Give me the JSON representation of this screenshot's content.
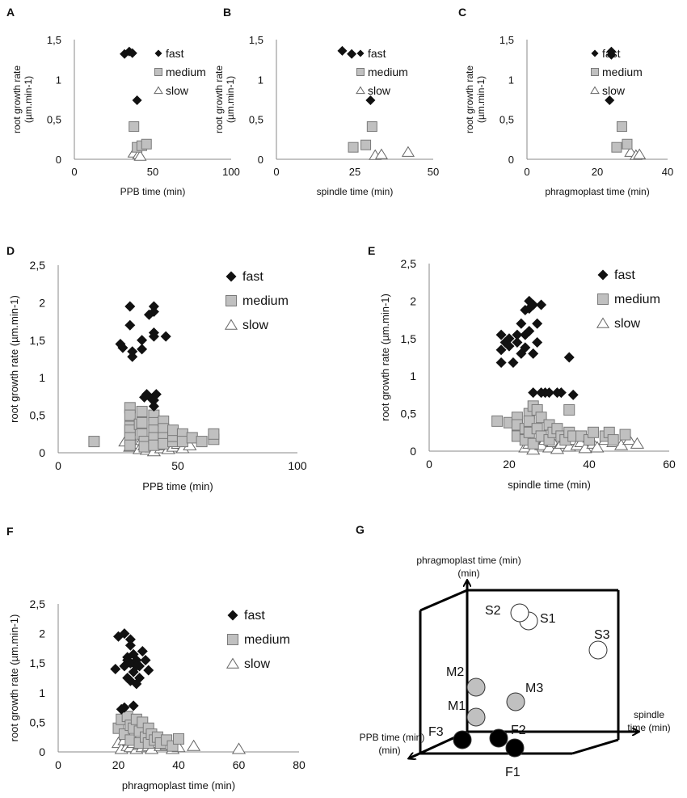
{
  "chart_data": [
    {
      "panel": "A",
      "type": "scatter",
      "xlabel": "PPB time (min)",
      "ylabel": "root growth  rate",
      "yunit": "(µm.min-1)",
      "xlim": [
        0,
        100
      ],
      "xticks": [
        0,
        50,
        100
      ],
      "ylim": [
        0,
        1.5
      ],
      "yticks": [
        "0",
        "0,5",
        "1",
        "1,5"
      ],
      "legend_position": "top-right",
      "series": [
        {
          "name": "fast",
          "marker": "diamond",
          "color": "#111111",
          "x": [
            32,
            35,
            37,
            40
          ],
          "y": [
            1.32,
            1.35,
            1.33,
            0.74
          ]
        },
        {
          "name": "medium",
          "marker": "square",
          "color": "#c0c0c0",
          "x": [
            38,
            40,
            43,
            46
          ],
          "y": [
            0.41,
            0.15,
            0.17,
            0.19
          ]
        },
        {
          "name": "slow",
          "marker": "triangle",
          "color": "#ffffff",
          "x": [
            38,
            41,
            42
          ],
          "y": [
            0.08,
            0.06,
            0.04
          ]
        }
      ]
    },
    {
      "panel": "B",
      "type": "scatter",
      "xlabel": "spindle time (min)",
      "ylabel": "root growth  rate",
      "yunit": "(µm.min-1)",
      "xlim": [
        0,
        50
      ],
      "xticks": [
        0,
        25,
        50
      ],
      "ylim": [
        0,
        1.5
      ],
      "yticks": [
        "0",
        "0,5",
        "1",
        "1,5"
      ],
      "legend_position": "top-right",
      "series": [
        {
          "name": "fast",
          "marker": "diamond",
          "color": "#111111",
          "x": [
            21,
            24,
            30
          ],
          "y": [
            1.36,
            1.32,
            0.74
          ]
        },
        {
          "name": "medium",
          "marker": "square",
          "color": "#c0c0c0",
          "x": [
            24.5,
            28.5,
            30.5
          ],
          "y": [
            0.15,
            0.18,
            0.41
          ]
        },
        {
          "name": "slow",
          "marker": "triangle",
          "color": "#ffffff",
          "x": [
            31.5,
            33.5,
            42
          ],
          "y": [
            0.05,
            0.06,
            0.09
          ]
        }
      ]
    },
    {
      "panel": "C",
      "type": "scatter",
      "xlabel": "phragmoplast time (min)",
      "ylabel": "root growth  rate",
      "yunit": "(µm.min-1)",
      "xlim": [
        0,
        40
      ],
      "xticks": [
        0,
        20,
        40
      ],
      "ylim": [
        0,
        1.5
      ],
      "yticks": [
        "0",
        "0,5",
        "1",
        "1,5"
      ],
      "legend_position": "top-right",
      "series": [
        {
          "name": "fast",
          "marker": "diamond",
          "color": "#111111",
          "x": [
            24,
            24,
            23.5
          ],
          "y": [
            1.35,
            1.31,
            0.74
          ]
        },
        {
          "name": "medium",
          "marker": "square",
          "color": "#c0c0c0",
          "x": [
            25.5,
            27,
            28.5
          ],
          "y": [
            0.15,
            0.41,
            0.19
          ]
        },
        {
          "name": "slow",
          "marker": "triangle",
          "color": "#ffffff",
          "x": [
            29.5,
            31,
            32
          ],
          "y": [
            0.09,
            0.05,
            0.06
          ]
        }
      ]
    },
    {
      "panel": "D",
      "type": "scatter",
      "xlabel": "PPB time (min)",
      "ylabel": "root growth rate",
      "yunit": "(µm.min-1)",
      "xlim": [
        0,
        100
      ],
      "xticks": [
        0,
        50,
        100
      ],
      "ylim": [
        0,
        2.5
      ],
      "yticks": [
        "0",
        "0,5",
        "1",
        "1,5",
        "2",
        "2,5"
      ],
      "legend_position": "top-right",
      "series": [
        {
          "name": "fast",
          "marker": "diamond",
          "color": "#111111",
          "x": [
            26,
            27,
            30,
            30,
            31,
            31,
            35,
            35,
            37,
            38,
            40,
            40,
            40,
            40,
            39,
            45,
            41,
            36,
            40,
            40
          ],
          "y": [
            1.45,
            1.4,
            1.95,
            1.7,
            1.35,
            1.28,
            1.5,
            1.38,
            0.78,
            1.84,
            1.95,
            1.88,
            1.6,
            1.55,
            0.72,
            1.55,
            0.78,
            0.74,
            0.7,
            0.62
          ]
        },
        {
          "name": "medium",
          "marker": "square",
          "color": "#c0c0c0",
          "x": [
            15,
            30,
            30,
            30,
            30,
            30,
            30,
            34,
            35,
            35,
            35,
            36,
            36,
            40,
            40,
            40,
            40,
            40,
            44,
            44,
            44,
            44,
            48,
            48,
            48,
            52,
            52,
            56,
            60,
            65,
            65
          ],
          "y": [
            0.15,
            0.6,
            0.5,
            0.35,
            0.3,
            0.2,
            0.1,
            0.38,
            0.55,
            0.4,
            0.25,
            0.15,
            0.08,
            0.5,
            0.4,
            0.3,
            0.2,
            0.1,
            0.42,
            0.32,
            0.2,
            0.12,
            0.15,
            0.22,
            0.3,
            0.25,
            0.15,
            0.2,
            0.15,
            0.18,
            0.25
          ]
        },
        {
          "name": "slow",
          "marker": "triangle",
          "color": "#ffffff",
          "x": [
            28,
            30,
            32,
            34,
            35,
            36,
            37,
            38,
            39,
            40,
            41,
            42,
            43,
            44,
            45,
            46,
            48,
            50,
            52,
            55
          ],
          "y": [
            0.15,
            0.08,
            0.12,
            0.05,
            0.17,
            0.1,
            0.04,
            0.14,
            0.07,
            0.02,
            0.12,
            0.18,
            0.06,
            0.1,
            0.15,
            0.05,
            0.08,
            0.12,
            0.06,
            0.1
          ]
        }
      ]
    },
    {
      "panel": "E",
      "type": "scatter",
      "xlabel": "spindle time (min)",
      "ylabel": "root growth rate",
      "yunit": "(µm.min-1)",
      "xlim": [
        0,
        60
      ],
      "xticks": [
        0,
        20,
        40,
        60
      ],
      "ylim": [
        0,
        2.5
      ],
      "yticks": [
        "0",
        "0,5",
        "1",
        "1,5",
        "2",
        "2,5"
      ],
      "legend_position": "top-right",
      "series": [
        {
          "name": "fast",
          "marker": "diamond",
          "color": "#111111",
          "x": [
            18,
            18,
            18,
            19,
            20,
            20,
            21,
            22,
            22,
            23,
            23,
            24,
            24,
            25,
            25,
            25,
            26,
            26,
            27,
            27,
            28,
            29,
            30,
            32,
            33,
            35,
            36,
            28,
            26,
            24
          ],
          "y": [
            1.55,
            1.35,
            1.18,
            1.45,
            1.5,
            1.4,
            1.18,
            1.55,
            1.45,
            1.7,
            1.3,
            1.55,
            1.38,
            2.0,
            1.9,
            1.6,
            1.3,
            1.95,
            1.45,
            1.7,
            0.78,
            0.78,
            0.78,
            0.78,
            0.78,
            1.25,
            0.75,
            1.95,
            0.78,
            1.88
          ]
        },
        {
          "name": "medium",
          "marker": "square",
          "color": "#c0c0c0",
          "x": [
            17,
            20,
            22,
            22,
            22,
            24,
            24,
            25,
            25,
            25,
            26,
            26,
            27,
            27,
            28,
            28,
            30,
            30,
            31,
            32,
            33,
            34,
            35,
            35,
            36,
            38,
            40,
            41,
            44,
            45,
            46,
            49
          ],
          "y": [
            0.4,
            0.38,
            0.45,
            0.35,
            0.2,
            0.3,
            0.15,
            0.5,
            0.4,
            0.25,
            0.6,
            0.1,
            0.55,
            0.3,
            0.45,
            0.2,
            0.35,
            0.15,
            0.25,
            0.3,
            0.2,
            0.15,
            0.55,
            0.25,
            0.2,
            0.2,
            0.15,
            0.25,
            0.2,
            0.25,
            0.15,
            0.22
          ]
        },
        {
          "name": "slow",
          "marker": "triangle",
          "color": "#ffffff",
          "x": [
            24,
            25,
            26,
            28,
            29,
            30,
            31,
            32,
            33,
            34,
            35,
            36,
            37,
            38,
            39,
            40,
            41,
            42,
            44,
            46,
            48,
            50,
            52
          ],
          "y": [
            0.05,
            0.1,
            0.02,
            0.08,
            0.15,
            0.05,
            0.12,
            0.03,
            0.1,
            0.18,
            0.06,
            0.15,
            0.08,
            0.12,
            0.04,
            0.18,
            0.1,
            0.05,
            0.15,
            0.12,
            0.08,
            0.15,
            0.1
          ]
        }
      ]
    },
    {
      "panel": "F",
      "type": "scatter",
      "xlabel": "phragmoplast time (min)",
      "ylabel": "root growth rate",
      "yunit": "(µm.min-1)",
      "xlim": [
        0,
        80
      ],
      "xticks": [
        0,
        20,
        40,
        60,
        80
      ],
      "ylim": [
        0,
        2.5
      ],
      "yticks": [
        "0",
        "0,5",
        "1",
        "1,5",
        "2",
        "2,5"
      ],
      "legend_position": "top-right",
      "series": [
        {
          "name": "fast",
          "marker": "diamond",
          "color": "#111111",
          "x": [
            19,
            20,
            21,
            22,
            22,
            23,
            23,
            24,
            24,
            24,
            25,
            25,
            26,
            26,
            27,
            27,
            28,
            29,
            30,
            22,
            23,
            25,
            24,
            26
          ],
          "y": [
            1.4,
            1.95,
            0.72,
            2.0,
            1.45,
            1.55,
            1.25,
            1.8,
            1.5,
            1.2,
            1.65,
            1.35,
            1.55,
            1.15,
            1.45,
            1.25,
            1.7,
            1.55,
            1.38,
            0.75,
            1.6,
            0.78,
            1.9,
            1.45
          ]
        },
        {
          "name": "medium",
          "marker": "square",
          "color": "#c0c0c0",
          "x": [
            20,
            21,
            22,
            23,
            24,
            24,
            25,
            26,
            27,
            27,
            28,
            29,
            30,
            30,
            31,
            32,
            33,
            34,
            36,
            38,
            40
          ],
          "y": [
            0.4,
            0.55,
            0.3,
            0.6,
            0.45,
            0.2,
            0.4,
            0.55,
            0.35,
            0.15,
            0.5,
            0.25,
            0.4,
            0.15,
            0.3,
            0.2,
            0.25,
            0.15,
            0.2,
            0.1,
            0.22
          ]
        },
        {
          "name": "slow",
          "marker": "triangle",
          "color": "#ffffff",
          "x": [
            20,
            21,
            22,
            23,
            24,
            25,
            26,
            27,
            28,
            29,
            30,
            31,
            32,
            34,
            36,
            38,
            40,
            45,
            60
          ],
          "y": [
            0.15,
            0.05,
            0.2,
            0.1,
            0.08,
            0.15,
            0.05,
            0.12,
            0.08,
            0.18,
            0.1,
            0.05,
            0.15,
            0.1,
            0.12,
            0.05,
            0.08,
            0.1,
            0.05
          ]
        }
      ]
    },
    {
      "panel": "G",
      "type": "diagram-3d",
      "axis_labels": {
        "vertical": "phragmoplast time (min)",
        "left": "PPB time (min)",
        "right": "spindle time (min)"
      },
      "points": [
        {
          "name": "F1",
          "group": "fast",
          "color": "#000000"
        },
        {
          "name": "F2",
          "group": "fast",
          "color": "#000000"
        },
        {
          "name": "F3",
          "group": "fast",
          "color": "#000000"
        },
        {
          "name": "M1",
          "group": "medium",
          "color": "#c0c0c0"
        },
        {
          "name": "M2",
          "group": "medium",
          "color": "#c0c0c0"
        },
        {
          "name": "M3",
          "group": "medium",
          "color": "#c0c0c0"
        },
        {
          "name": "S1",
          "group": "slow",
          "color": "#ffffff"
        },
        {
          "name": "S2",
          "group": "slow",
          "color": "#ffffff"
        },
        {
          "name": "S3",
          "group": "slow",
          "color": "#ffffff"
        }
      ]
    }
  ]
}
